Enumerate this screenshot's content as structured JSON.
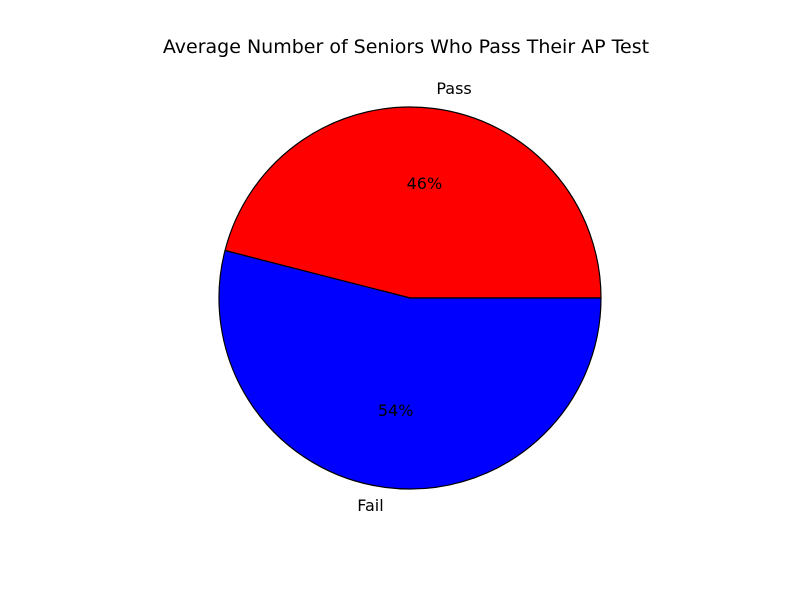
{
  "chart_data": {
    "type": "pie",
    "title": "Average Number of Seniors Who Pass Their AP Test",
    "labels": [
      "Pass",
      "Fail"
    ],
    "values": [
      46,
      54
    ],
    "value_labels": [
      "46%",
      "54%"
    ],
    "colors": [
      "#ff0000",
      "#0000ff"
    ],
    "start_angle_deg": 0,
    "direction": "counterclockwise",
    "edge_color": "#000000"
  }
}
